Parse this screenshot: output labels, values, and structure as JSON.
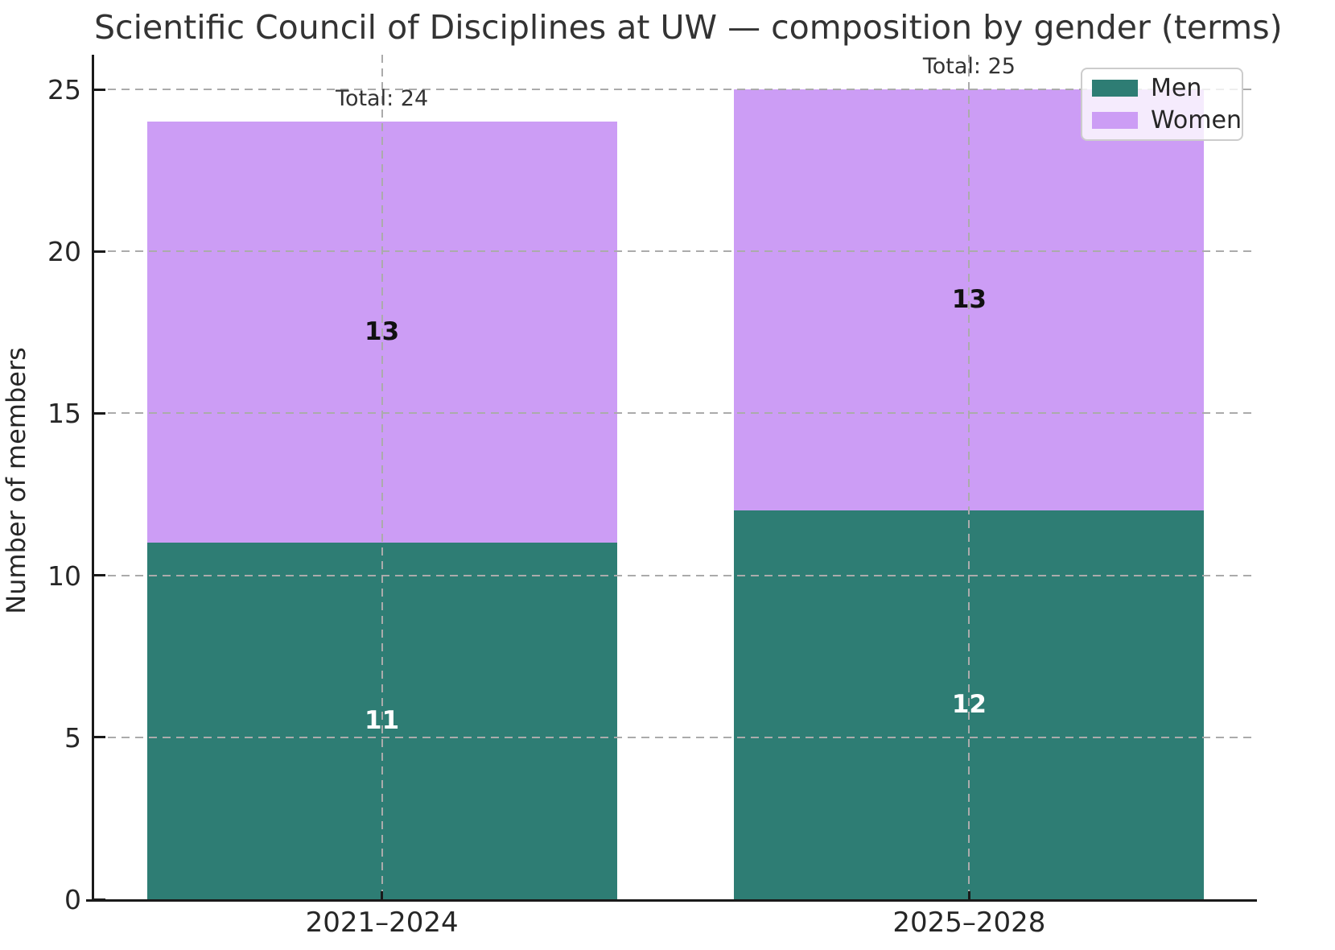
{
  "chart_data": {
    "type": "bar",
    "stacked": true,
    "title": "Scientific Council of Disciplines at UW — composition by gender (terms)",
    "ylabel": "Number of members",
    "xlabel": "",
    "categories": [
      "2021–2024",
      "2025–2028"
    ],
    "series": [
      {
        "name": "Men",
        "values": [
          11,
          12
        ],
        "color": "#2e7d74",
        "label_color": "#ffffff"
      },
      {
        "name": "Women",
        "values": [
          13,
          13
        ],
        "color": "#cc9df5",
        "label_color": "#111111"
      }
    ],
    "totals": [
      24,
      25
    ],
    "total_label_prefix": "Total: ",
    "total_labels": [
      "Total: 24",
      "Total: 25"
    ],
    "ylim": [
      0,
      25
    ],
    "yticks": [
      0,
      5,
      10,
      15,
      20,
      25
    ],
    "grid": "dashed",
    "legend_position": "upper right",
    "colors": {
      "axis": "#1a1a1a",
      "grid": "#ababab",
      "tick_label": "#262626",
      "title": "#333333",
      "background": "#ffffff"
    }
  }
}
